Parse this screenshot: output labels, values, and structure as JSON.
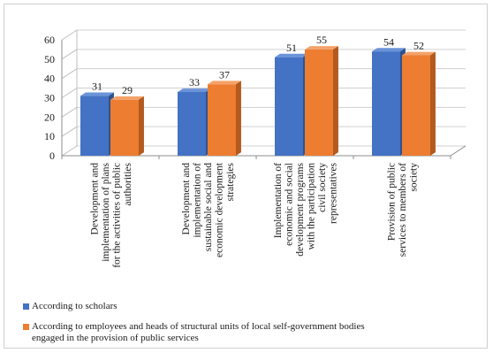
{
  "chart_data": {
    "type": "bar",
    "categories": [
      "Development and implementation of plans for the activities of public authorities",
      "Development and implementation of sustainable social and economic development strategies",
      "Implementation of economic and social development programs with the participation civil society representatives",
      "Provision of public services to members of society"
    ],
    "category_label_lines": [
      [
        "Development and",
        "implementation of plans",
        "for the activities of public",
        "authorities"
      ],
      [
        "Development and",
        "implementation of",
        "sustainable social and",
        "economic development",
        "strategies"
      ],
      [
        "Implementation of",
        "economic and social",
        "development programs",
        "with the participation",
        "civil society",
        "representatives"
      ],
      [
        "Provision of public",
        "services to members of",
        "society"
      ]
    ],
    "series": [
      {
        "name": "According to scholars",
        "values": [
          31,
          33,
          51,
          54
        ],
        "color": "#4472c4"
      },
      {
        "name": "According to employees and heads of structural units of local self-government bodies engaged in the provision of public services",
        "name_lines": [
          "According to employees and heads of structural units of local self-government bodies",
          "engaged in the provision of public services"
        ],
        "values": [
          29,
          37,
          55,
          52
        ],
        "color": "#ed7d31"
      }
    ],
    "y_ticks": [
      0,
      10,
      20,
      30,
      40,
      50,
      60
    ],
    "ylim": [
      0,
      60
    ],
    "grid": true,
    "legend_position": "bottom-left",
    "title": "",
    "xlabel": "",
    "ylabel": ""
  }
}
